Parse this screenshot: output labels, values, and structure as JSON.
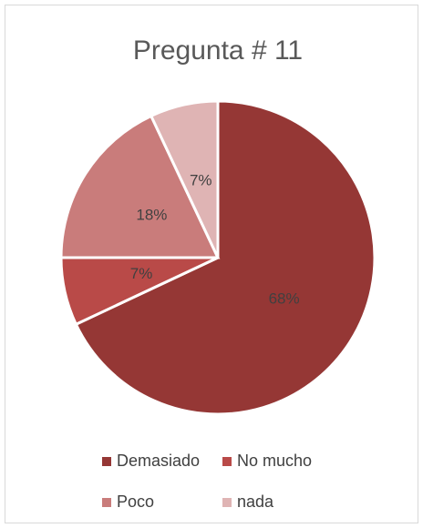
{
  "chart_data": {
    "type": "pie",
    "title": "Pregunta # 11",
    "categories": [
      "Demasiado",
      "No mucho",
      "Poco",
      "nada"
    ],
    "values": [
      68,
      7,
      18,
      7
    ],
    "value_labels": [
      "68%",
      "7%",
      "18%",
      "7%"
    ],
    "colors": [
      "#953735",
      "#b94a48",
      "#c97c7b",
      "#dfb4b4"
    ],
    "legend": "bottom"
  }
}
